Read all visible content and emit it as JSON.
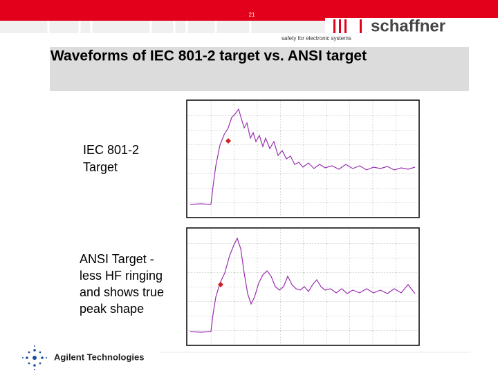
{
  "slide_number": "21",
  "logo": {
    "brand": "schaffner",
    "tagline": "safety for electronic systems"
  },
  "title": "Waveforms of IEC 801-2 target vs. ANSI target",
  "panels": [
    {
      "label_lines": [
        "IEC 801-2",
        "Target"
      ]
    },
    {
      "label_lines": [
        "ANSI Target -",
        "less HF ringing",
        "and shows true",
        "peak shape"
      ]
    }
  ],
  "footer": {
    "company": "Agilent Technologies"
  }
}
